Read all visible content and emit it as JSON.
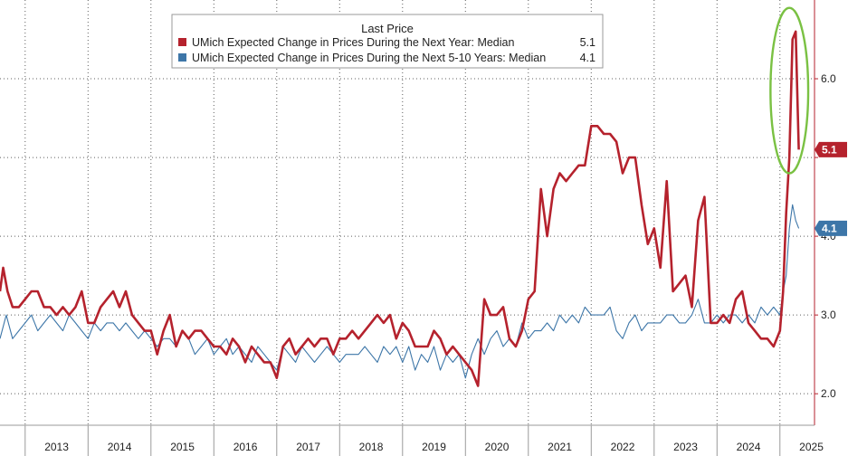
{
  "chart_data": {
    "type": "line",
    "legend_title": "Last Price",
    "legend_placement": "top-center",
    "grid": true,
    "x_range": [
      2012.6,
      2025.55
    ],
    "ylim": [
      1.6,
      7.0
    ],
    "y_ticks": [
      2.0,
      3.0,
      4.0,
      5.0,
      6.0
    ],
    "y_tick_labels": [
      "2.0",
      "3.0",
      "4.0",
      "",
      "6.0"
    ],
    "x_year_labels": [
      "2013",
      "2014",
      "2015",
      "2016",
      "2017",
      "2018",
      "2019",
      "2020",
      "2021",
      "2022",
      "2023",
      "2024",
      "2025"
    ],
    "series": [
      {
        "name": "UMich Expected Change in Prices During the Next Year: Median",
        "last_value": "5.1",
        "color": "#b5222d",
        "x": [
          2012.6,
          2012.65,
          2012.72,
          2012.8,
          2012.9,
          2013.0,
          2013.1,
          2013.2,
          2013.3,
          2013.4,
          2013.5,
          2013.6,
          2013.7,
          2013.8,
          2013.9,
          2014.0,
          2014.1,
          2014.2,
          2014.3,
          2014.4,
          2014.5,
          2014.6,
          2014.7,
          2014.8,
          2014.9,
          2015.0,
          2015.1,
          2015.2,
          2015.3,
          2015.4,
          2015.5,
          2015.6,
          2015.7,
          2015.8,
          2015.9,
          2016.0,
          2016.1,
          2016.2,
          2016.3,
          2016.4,
          2016.5,
          2016.6,
          2016.7,
          2016.8,
          2016.9,
          2017.0,
          2017.1,
          2017.2,
          2017.3,
          2017.4,
          2017.5,
          2017.6,
          2017.7,
          2017.8,
          2017.9,
          2018.0,
          2018.1,
          2018.2,
          2018.3,
          2018.4,
          2018.5,
          2018.6,
          2018.7,
          2018.8,
          2018.9,
          2019.0,
          2019.1,
          2019.2,
          2019.3,
          2019.4,
          2019.5,
          2019.6,
          2019.7,
          2019.8,
          2019.9,
          2020.0,
          2020.1,
          2020.2,
          2020.3,
          2020.4,
          2020.5,
          2020.6,
          2020.7,
          2020.8,
          2020.9,
          2021.0,
          2021.1,
          2021.2,
          2021.3,
          2021.4,
          2021.5,
          2021.6,
          2021.7,
          2021.8,
          2021.9,
          2022.0,
          2022.1,
          2022.2,
          2022.3,
          2022.4,
          2022.5,
          2022.6,
          2022.7,
          2022.8,
          2022.9,
          2023.0,
          2023.1,
          2023.2,
          2023.3,
          2023.4,
          2023.5,
          2023.6,
          2023.7,
          2023.8,
          2023.9,
          2024.0,
          2024.1,
          2024.2,
          2024.3,
          2024.4,
          2024.5,
          2024.6,
          2024.7,
          2024.8,
          2024.9,
          2025.0,
          2025.05,
          2025.1,
          2025.15,
          2025.2,
          2025.25,
          2025.3
        ],
        "values": [
          3.3,
          3.6,
          3.3,
          3.1,
          3.1,
          3.2,
          3.3,
          3.3,
          3.1,
          3.1,
          3.0,
          3.1,
          3.0,
          3.1,
          3.3,
          2.9,
          2.9,
          3.1,
          3.2,
          3.3,
          3.1,
          3.3,
          3.0,
          2.9,
          2.8,
          2.8,
          2.5,
          2.8,
          3.0,
          2.6,
          2.8,
          2.7,
          2.8,
          2.8,
          2.7,
          2.6,
          2.6,
          2.5,
          2.7,
          2.6,
          2.4,
          2.6,
          2.5,
          2.4,
          2.4,
          2.2,
          2.6,
          2.7,
          2.5,
          2.6,
          2.7,
          2.6,
          2.7,
          2.7,
          2.5,
          2.7,
          2.7,
          2.8,
          2.7,
          2.8,
          2.9,
          3.0,
          2.9,
          3.0,
          2.7,
          2.9,
          2.8,
          2.6,
          2.6,
          2.6,
          2.8,
          2.7,
          2.5,
          2.6,
          2.5,
          2.4,
          2.3,
          2.1,
          3.2,
          3.0,
          3.0,
          3.1,
          2.7,
          2.6,
          2.8,
          3.2,
          3.3,
          4.6,
          4.0,
          4.6,
          4.8,
          4.7,
          4.8,
          4.9,
          4.9,
          5.4,
          5.4,
          5.3,
          5.3,
          5.2,
          4.8,
          5.0,
          5.0,
          4.4,
          3.9,
          4.1,
          3.6,
          4.7,
          3.3,
          3.4,
          3.5,
          3.1,
          4.2,
          4.5,
          2.9,
          2.9,
          3.0,
          2.9,
          3.2,
          3.3,
          2.9,
          2.8,
          2.7,
          2.7,
          2.6,
          2.8,
          3.3,
          4.3,
          5.0,
          6.5,
          6.6,
          5.1
        ],
        "last_x": 2025.3
      },
      {
        "name": "UMich Expected Change in Prices During the Next 5-10 Years: Median",
        "last_value": "4.1",
        "color": "#3d76a8",
        "x": [
          2012.6,
          2012.7,
          2012.8,
          2012.9,
          2013.0,
          2013.1,
          2013.2,
          2013.3,
          2013.4,
          2013.5,
          2013.6,
          2013.7,
          2013.8,
          2013.9,
          2014.0,
          2014.1,
          2014.2,
          2014.3,
          2014.4,
          2014.5,
          2014.6,
          2014.7,
          2014.8,
          2014.9,
          2015.0,
          2015.1,
          2015.2,
          2015.3,
          2015.4,
          2015.5,
          2015.6,
          2015.7,
          2015.8,
          2015.9,
          2016.0,
          2016.1,
          2016.2,
          2016.3,
          2016.4,
          2016.5,
          2016.6,
          2016.7,
          2016.8,
          2016.9,
          2017.0,
          2017.1,
          2017.2,
          2017.3,
          2017.4,
          2017.5,
          2017.6,
          2017.7,
          2017.8,
          2017.9,
          2018.0,
          2018.1,
          2018.2,
          2018.3,
          2018.4,
          2018.5,
          2018.6,
          2018.7,
          2018.8,
          2018.9,
          2019.0,
          2019.1,
          2019.2,
          2019.3,
          2019.4,
          2019.5,
          2019.6,
          2019.7,
          2019.8,
          2019.9,
          2020.0,
          2020.1,
          2020.2,
          2020.3,
          2020.4,
          2020.5,
          2020.6,
          2020.7,
          2020.8,
          2020.9,
          2021.0,
          2021.1,
          2021.2,
          2021.3,
          2021.4,
          2021.5,
          2021.6,
          2021.7,
          2021.8,
          2021.9,
          2022.0,
          2022.1,
          2022.2,
          2022.3,
          2022.4,
          2022.5,
          2022.6,
          2022.7,
          2022.8,
          2022.9,
          2023.0,
          2023.1,
          2023.2,
          2023.3,
          2023.4,
          2023.5,
          2023.6,
          2023.7,
          2023.8,
          2023.9,
          2024.0,
          2024.1,
          2024.2,
          2024.3,
          2024.4,
          2024.5,
          2024.6,
          2024.7,
          2024.8,
          2024.9,
          2025.0,
          2025.05,
          2025.1,
          2025.15,
          2025.2,
          2025.25,
          2025.3
        ],
        "values": [
          2.7,
          3.0,
          2.7,
          2.8,
          2.9,
          3.0,
          2.8,
          2.9,
          3.0,
          2.9,
          2.8,
          3.0,
          2.9,
          2.8,
          2.7,
          2.9,
          2.8,
          2.9,
          2.9,
          2.8,
          2.9,
          2.8,
          2.7,
          2.8,
          2.7,
          2.6,
          2.7,
          2.7,
          2.6,
          2.8,
          2.7,
          2.5,
          2.6,
          2.7,
          2.5,
          2.6,
          2.7,
          2.5,
          2.6,
          2.5,
          2.4,
          2.6,
          2.5,
          2.4,
          2.3,
          2.6,
          2.5,
          2.4,
          2.6,
          2.5,
          2.4,
          2.5,
          2.6,
          2.5,
          2.4,
          2.5,
          2.5,
          2.5,
          2.6,
          2.5,
          2.4,
          2.6,
          2.5,
          2.6,
          2.4,
          2.6,
          2.3,
          2.5,
          2.4,
          2.6,
          2.3,
          2.5,
          2.4,
          2.5,
          2.2,
          2.5,
          2.7,
          2.5,
          2.7,
          2.8,
          2.6,
          2.7,
          2.6,
          2.9,
          2.7,
          2.8,
          2.8,
          2.9,
          2.8,
          3.0,
          2.9,
          3.0,
          2.9,
          3.1,
          3.0,
          3.0,
          3.0,
          3.1,
          2.8,
          2.7,
          2.9,
          3.0,
          2.8,
          2.9,
          2.9,
          2.9,
          3.0,
          3.0,
          2.9,
          2.9,
          3.0,
          3.2,
          2.9,
          2.9,
          3.0,
          2.9,
          3.0,
          3.0,
          2.9,
          3.0,
          2.9,
          3.1,
          3.0,
          3.1,
          3.0,
          3.3,
          3.5,
          4.1,
          4.4,
          4.2,
          4.1
        ],
        "last_x": 2025.3
      }
    ],
    "annotations": [
      {
        "type": "ellipse",
        "color": "#7ac143",
        "center_x": 2025.15,
        "center_y": 5.85,
        "rx_years": 0.3,
        "ry": 1.05
      }
    ]
  }
}
